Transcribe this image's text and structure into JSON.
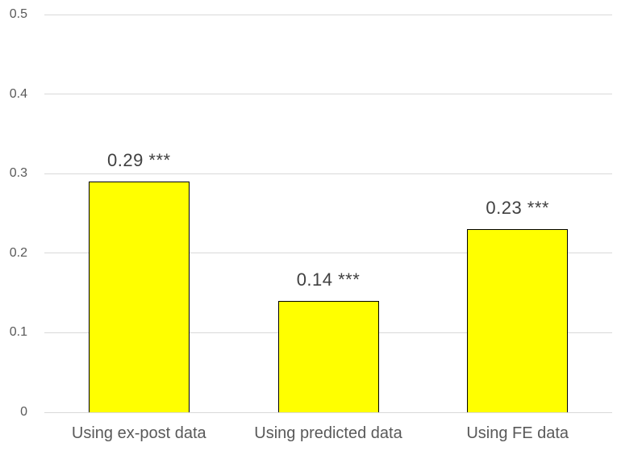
{
  "chart_data": {
    "type": "bar",
    "categories": [
      "Using ex-post data",
      "Using predicted data",
      "Using FE data"
    ],
    "values": [
      0.29,
      0.14,
      0.23
    ],
    "data_labels": [
      "0.29 ***",
      "0.14 ***",
      "0.23 ***"
    ],
    "ylim": [
      0,
      0.5
    ],
    "yticks": [
      0,
      0.1,
      0.2,
      0.3,
      0.4,
      0.5
    ],
    "ytick_labels": [
      "0",
      "0.1",
      "0.2",
      "0.3",
      "0.4",
      "0.5"
    ],
    "grid": true,
    "legend": false,
    "colors": {
      "background": "#FFFFFF",
      "bar_fill": "#FFFF00",
      "bar_border": "#000000",
      "gridline": "#D9D9D9",
      "axis_line": "#D9D9D9",
      "tick_text": "#595959",
      "category_text": "#595959",
      "data_label_text": "#404040"
    }
  }
}
